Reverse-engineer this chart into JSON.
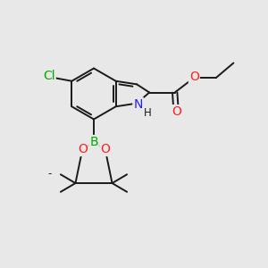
{
  "bg_color": "#e8e8e8",
  "bond_color": "#1a1a1a",
  "bond_width": 1.4,
  "atom_colors": {
    "Cl": "#00aa00",
    "N": "#2020ff",
    "O": "#ff2020",
    "B": "#00aa00",
    "C": "#1a1a1a"
  },
  "font_size": 10,
  "font_size_small": 8.5
}
